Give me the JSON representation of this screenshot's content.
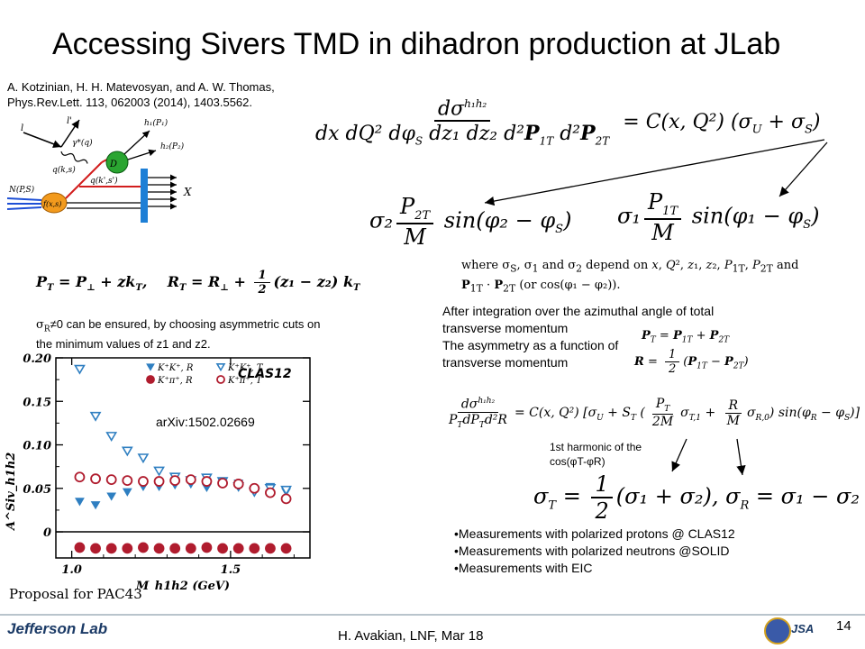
{
  "slide": {
    "title": "Accessing Sivers TMD in dihadron production at JLab",
    "reference_line1": "A. Kotzinian, H. H. Matevosyan, and A. W. Thomas,",
    "reference_line2": "Phys.Rev.Lett. 113, 062003 (2014), 1403.5562.",
    "integration_text_1": "After integration over the azimuthal angle of total",
    "integration_text_2": "transverse momentum",
    "integration_text_3": "The asymmetry as a function of",
    "integration_text_4": "transverse momentum",
    "sigma_note_1": "≠0 can be ensured, by choosing asymmetric cuts on",
    "sigma_note_2": "the minimum values of z1 and z2.",
    "harmonic_note_1": "1st harmonic of the",
    "harmonic_note_2": "cos(φT-φR)",
    "arxiv": "arXiv:1502.02669",
    "proposal": "Proposal for PAC43",
    "bullets": [
      "Measurements with polarized protons @ CLAS12",
      "Measurements with polarized neutrons @SOLID",
      "Measurements with EIC"
    ],
    "footer_text": "H. Avakian,  LNF,  Mar 18",
    "page_number": "14",
    "logo_text": "Jefferson Lab",
    "jsa_text": "JSA"
  },
  "chart_data": {
    "type": "scatter",
    "title": "",
    "label": "CLAS12",
    "xlabel": "M_h1h2 (GeV)",
    "ylabel": "A^Siv_h1h2",
    "xlim": [
      0.95,
      1.75
    ],
    "ylim": [
      -0.03,
      0.2
    ],
    "xticks": [
      "1.0",
      "1.5"
    ],
    "yticks": [
      "0",
      "0.05",
      "0.10",
      "0.15",
      "0.20"
    ],
    "legend": [
      "K⁺K⁺, R",
      "K⁺K⁺, T",
      "K⁺π⁺, R",
      "K⁺π⁺, T"
    ],
    "legend_placement": "top-right",
    "x": [
      1.025,
      1.075,
      1.125,
      1.175,
      1.225,
      1.275,
      1.325,
      1.375,
      1.425,
      1.475,
      1.525,
      1.575,
      1.625,
      1.675
    ],
    "series": [
      {
        "name": "K⁺K⁺, R",
        "values": [
          0.035,
          0.031,
          0.041,
          0.046,
          0.052,
          0.052,
          0.054,
          0.055,
          0.051,
          0.057,
          0.056,
          0.048,
          0.052,
          0.046
        ]
      },
      {
        "name": "K⁺K⁺, T",
        "values": [
          0.187,
          0.133,
          0.11,
          0.093,
          0.085,
          0.07,
          0.063,
          0.059,
          0.062,
          0.058,
          0.052,
          0.046,
          0.05,
          0.048
        ]
      },
      {
        "name": "K⁺π⁺, R",
        "values": [
          -0.018,
          -0.019,
          -0.019,
          -0.019,
          -0.018,
          -0.019,
          -0.019,
          -0.019,
          -0.018,
          -0.019,
          -0.019,
          -0.019,
          -0.019,
          -0.019
        ]
      },
      {
        "name": "K⁺π⁺, T",
        "values": [
          0.063,
          0.061,
          0.06,
          0.059,
          0.058,
          0.058,
          0.059,
          0.06,
          0.058,
          0.056,
          0.055,
          0.05,
          0.045,
          0.038
        ]
      }
    ],
    "colors": {
      "K⁺K⁺": "#2f7fc1",
      "K⁺π⁺": "#b01c2e"
    }
  }
}
